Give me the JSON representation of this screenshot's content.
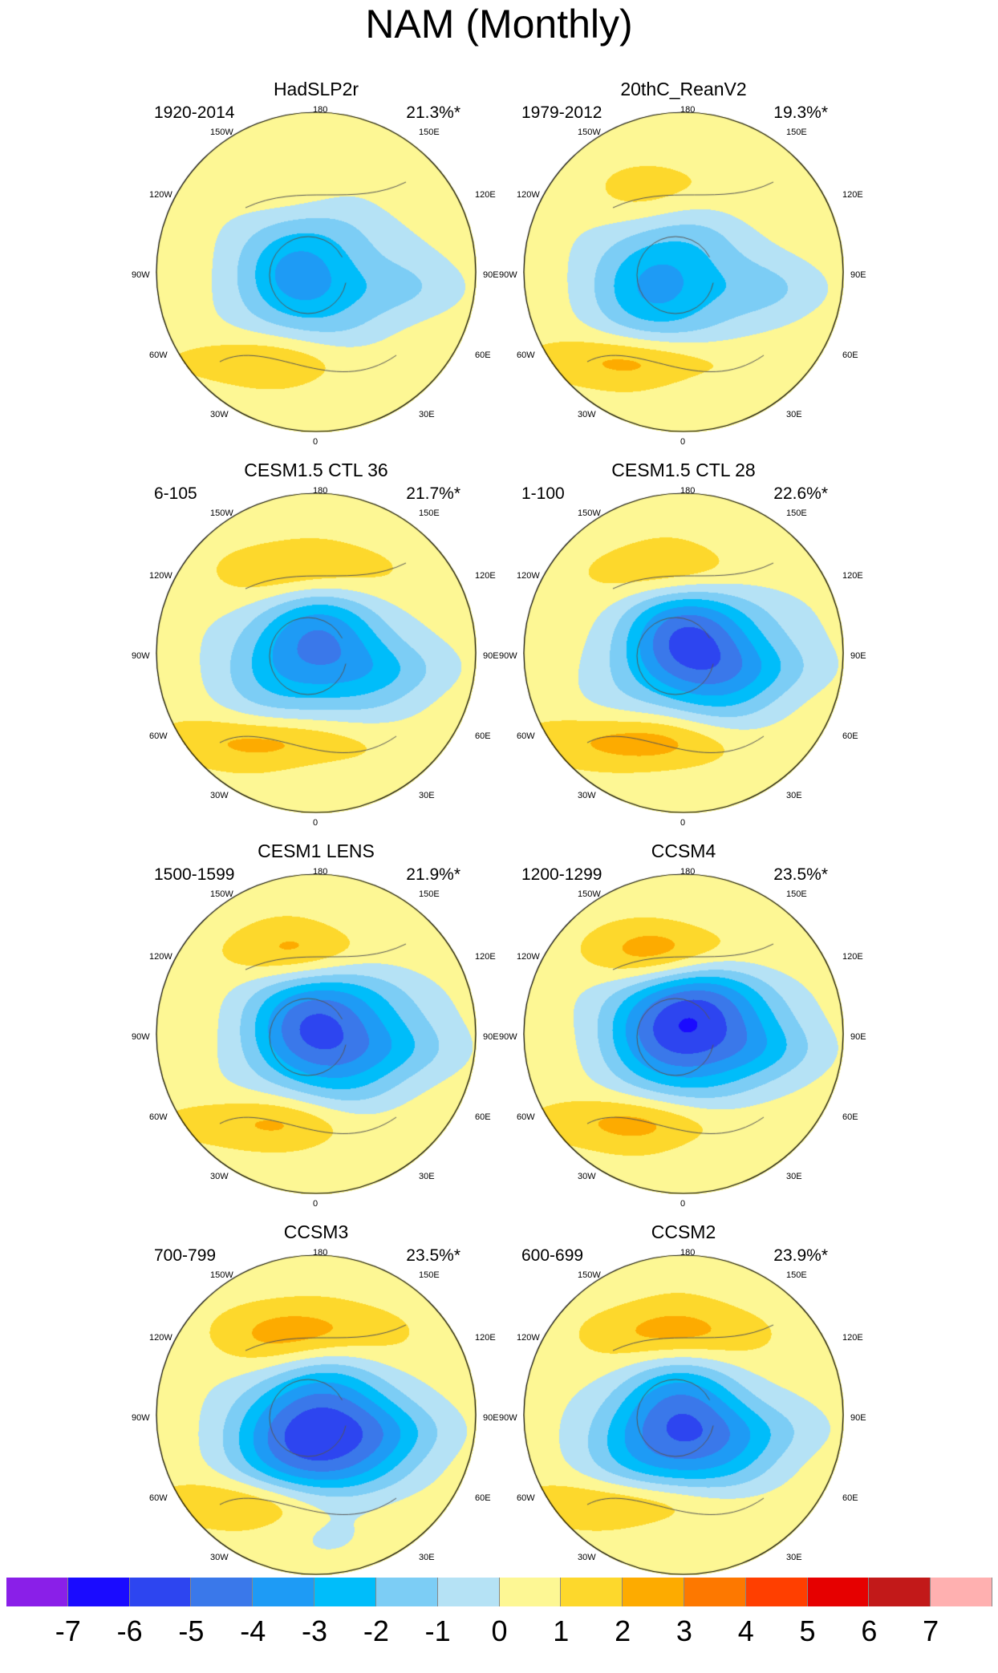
{
  "figure": {
    "title": "NAM (Monthly)"
  },
  "longitude_labels": [
    "180",
    "150W",
    "150E",
    "120W",
    "120E",
    "90W",
    "90E",
    "60W",
    "60E",
    "30W",
    "30E",
    "0"
  ],
  "panels": [
    {
      "title": "HadSLP2r",
      "period": "1920-2014",
      "variance": "21.3%*",
      "field": {
        "min": -4,
        "max": 2,
        "neg_center_shift": [
          0.0,
          0.0
        ],
        "pos_pacific": 0.7,
        "pos_atlantic": 1.6
      }
    },
    {
      "title": "20thC_ReanV2",
      "period": "1979-2012",
      "variance": "19.3%*",
      "field": {
        "min": -4,
        "max": 2,
        "neg_center_shift": [
          -0.05,
          0.05
        ],
        "pos_pacific": 1.3,
        "pos_atlantic": 2.2
      }
    },
    {
      "title": "CESM1.5 CTL 36",
      "period": "6-105",
      "variance": "21.7%*",
      "field": {
        "min": -5,
        "max": 3,
        "neg_center_shift": [
          0.02,
          -0.02
        ],
        "pos_pacific": 2.4,
        "pos_atlantic": 2.2
      }
    },
    {
      "title": "CESM1.5 CTL 28",
      "period": "1-100",
      "variance": "22.6%*",
      "field": {
        "min": -6,
        "max": 3,
        "neg_center_shift": [
          0.1,
          -0.05
        ],
        "pos_pacific": 2.4,
        "pos_atlantic": 2.3
      }
    },
    {
      "title": "CESM1 LENS",
      "period": "1500-1599",
      "variance": "21.9%*",
      "field": {
        "min": -6,
        "max": 3,
        "neg_center_shift": [
          0.1,
          -0.05
        ],
        "pos_pacific": 2.6,
        "pos_atlantic": 1.8
      }
    },
    {
      "title": "CCSM4",
      "period": "1200-1299",
      "variance": "23.5%*",
      "field": {
        "min": -7,
        "max": 4,
        "neg_center_shift": [
          0.08,
          -0.08
        ],
        "pos_pacific": 3.4,
        "pos_atlantic": 2.0
      }
    },
    {
      "title": "CCSM3",
      "period": "700-799",
      "variance": "23.5%*",
      "field": {
        "min": -7,
        "max": 3,
        "neg_center_shift": [
          0.05,
          0.12
        ],
        "pos_pacific": 2.6,
        "pos_atlantic": 2.3
      }
    },
    {
      "title": "CCSM2",
      "period": "600-699",
      "variance": "23.9%*",
      "field": {
        "min": -6,
        "max": 3,
        "neg_center_shift": [
          0.0,
          0.1
        ],
        "pos_pacific": 2.5,
        "pos_atlantic": 2.4
      }
    }
  ],
  "colorbar": {
    "labels": [
      "-7",
      "-6",
      "-5",
      "-4",
      "-3",
      "-2",
      "-1",
      "0",
      "1",
      "2",
      "3",
      "4",
      "5",
      "6",
      "7"
    ],
    "colors": [
      "#8a1fe8",
      "#1a0bff",
      "#2d45f0",
      "#3a78ea",
      "#1e9bf5",
      "#00bdfa",
      "#7ccdf5",
      "#b5e2f5",
      "#fdf794",
      "#fdd82c",
      "#fdab00",
      "#fd7800",
      "#ff3f00",
      "#e60000",
      "#c21919",
      "#ffb0b0"
    ]
  }
}
